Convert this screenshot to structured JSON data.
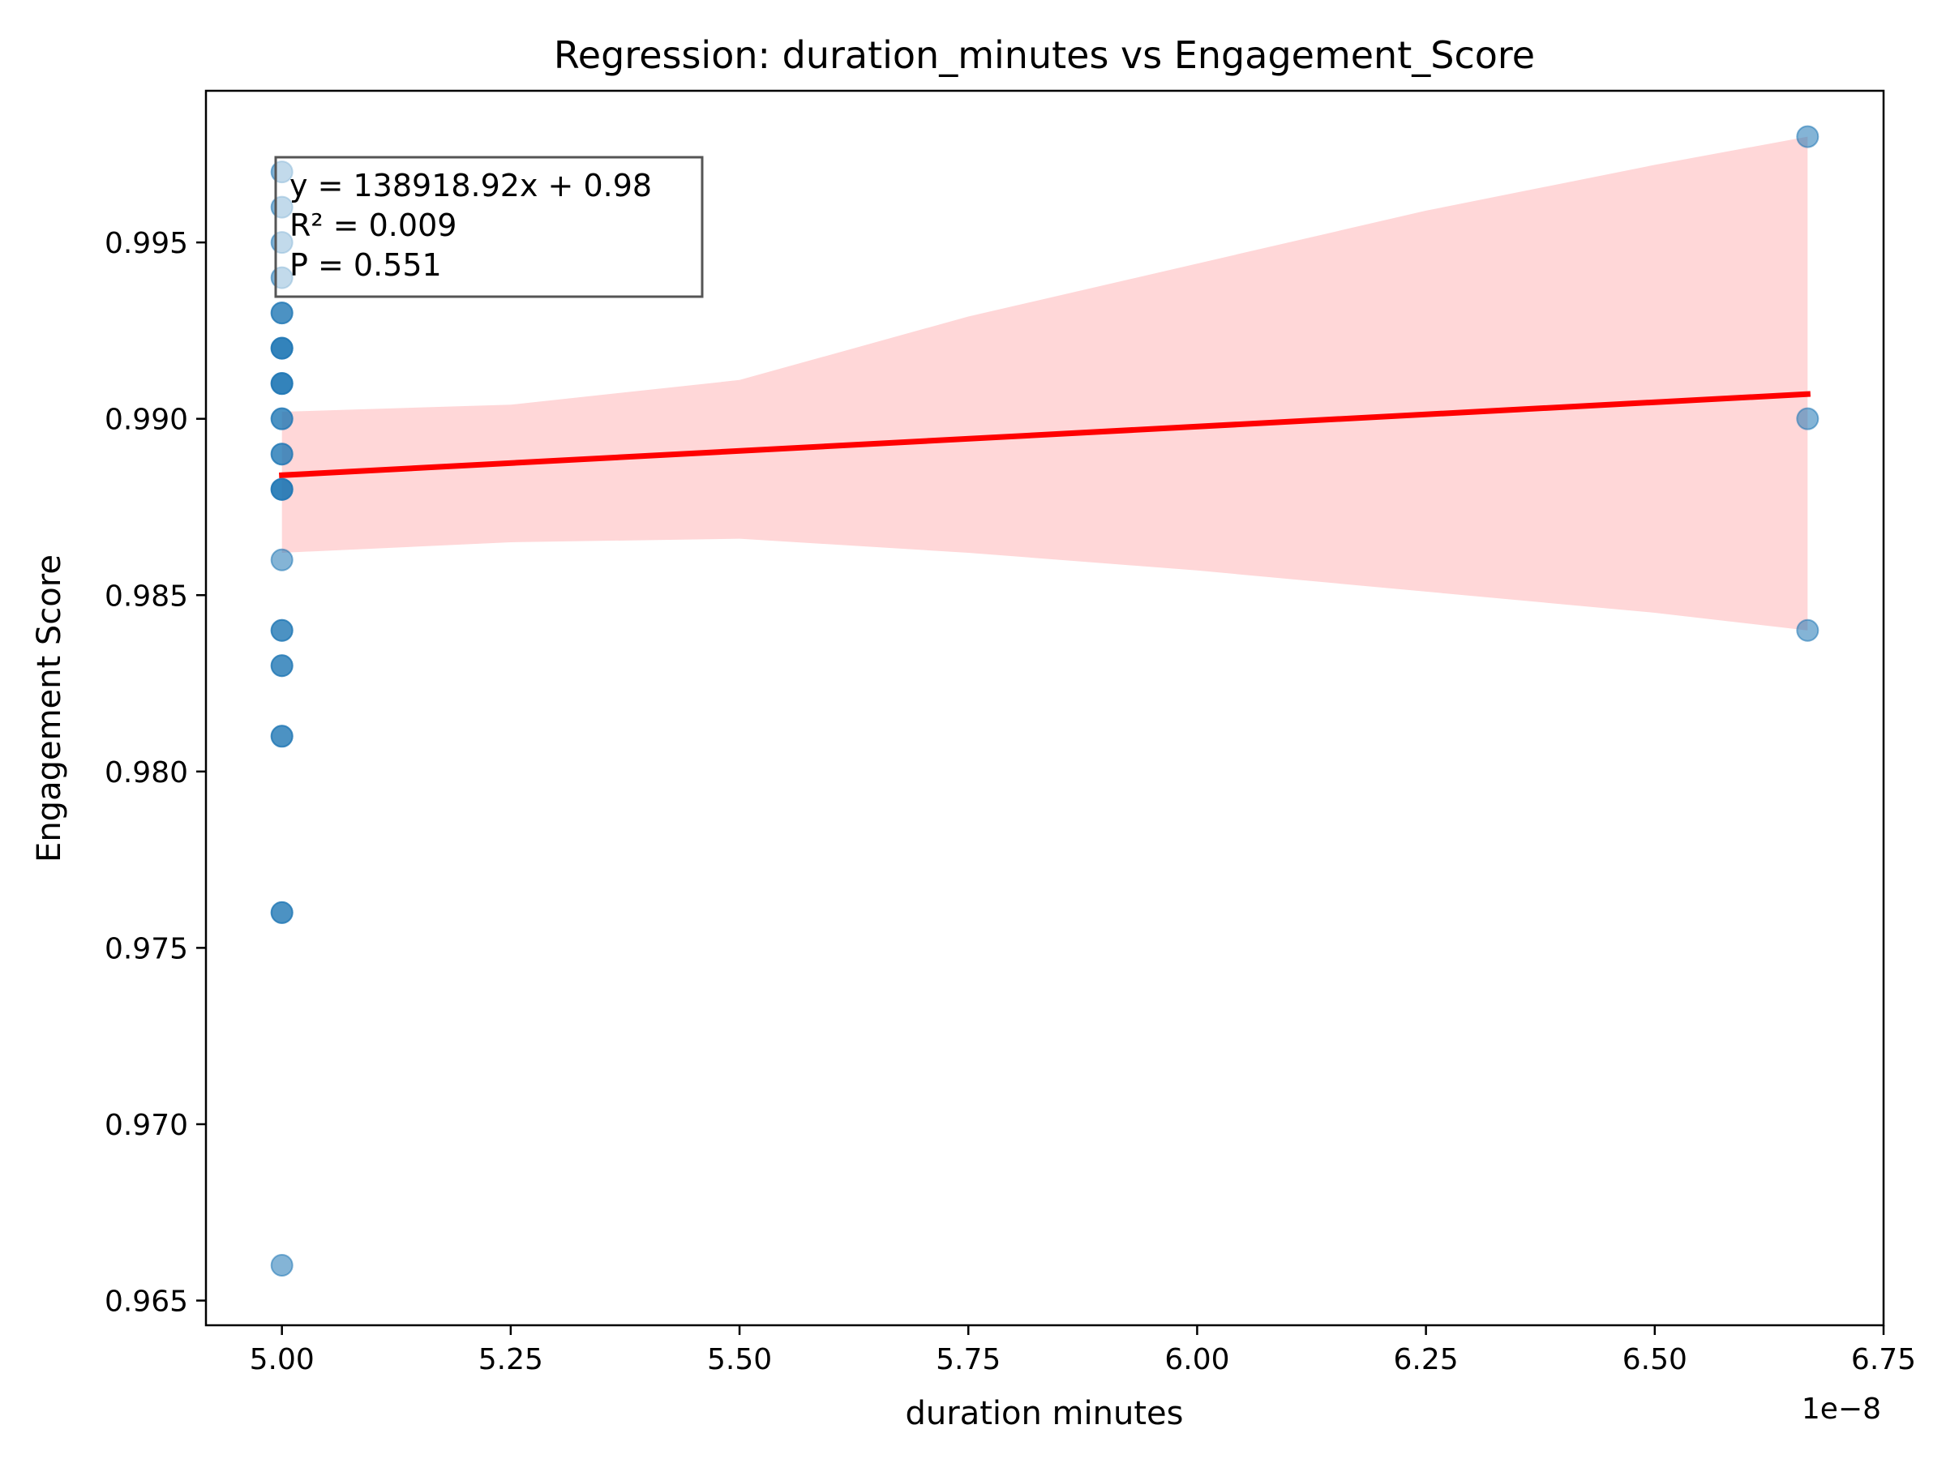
{
  "chart_data": {
    "type": "scatter",
    "title": "Regression: duration_minutes vs Engagement_Score",
    "xlabel": "duration minutes",
    "ylabel": "Engagement Score",
    "x_offset_label": "1e−8",
    "xlim": [
      4.917,
      6.75
    ],
    "ylim": [
      0.9643,
      0.9993
    ],
    "xticks": [
      5.0,
      5.25,
      5.5,
      5.75,
      6.0,
      6.25,
      6.5,
      6.75
    ],
    "xtick_labels": [
      "5.00",
      "5.25",
      "5.50",
      "5.75",
      "6.00",
      "6.25",
      "6.50",
      "6.75"
    ],
    "yticks": [
      0.965,
      0.97,
      0.975,
      0.98,
      0.985,
      0.99,
      0.995
    ],
    "ytick_labels": [
      "0.965",
      "0.970",
      "0.975",
      "0.980",
      "0.985",
      "0.990",
      "0.995"
    ],
    "grid": false,
    "points": [
      {
        "x": 5.0,
        "y": 0.997
      },
      {
        "x": 5.0,
        "y": 0.996
      },
      {
        "x": 5.0,
        "y": 0.995
      },
      {
        "x": 5.0,
        "y": 0.994
      },
      {
        "x": 5.0,
        "y": 0.993
      },
      {
        "x": 5.0,
        "y": 0.993
      },
      {
        "x": 5.0,
        "y": 0.992
      },
      {
        "x": 5.0,
        "y": 0.992
      },
      {
        "x": 5.0,
        "y": 0.992
      },
      {
        "x": 5.0,
        "y": 0.991
      },
      {
        "x": 5.0,
        "y": 0.991
      },
      {
        "x": 5.0,
        "y": 0.991
      },
      {
        "x": 5.0,
        "y": 0.99
      },
      {
        "x": 5.0,
        "y": 0.99
      },
      {
        "x": 5.0,
        "y": 0.989
      },
      {
        "x": 5.0,
        "y": 0.989
      },
      {
        "x": 5.0,
        "y": 0.988
      },
      {
        "x": 5.0,
        "y": 0.988
      },
      {
        "x": 5.0,
        "y": 0.988
      },
      {
        "x": 5.0,
        "y": 0.986
      },
      {
        "x": 5.0,
        "y": 0.984
      },
      {
        "x": 5.0,
        "y": 0.984
      },
      {
        "x": 5.0,
        "y": 0.983
      },
      {
        "x": 5.0,
        "y": 0.983
      },
      {
        "x": 5.0,
        "y": 0.981
      },
      {
        "x": 5.0,
        "y": 0.981
      },
      {
        "x": 5.0,
        "y": 0.976
      },
      {
        "x": 5.0,
        "y": 0.976
      },
      {
        "x": 5.0,
        "y": 0.966
      },
      {
        "x": 6.667,
        "y": 0.998
      },
      {
        "x": 6.667,
        "y": 0.99
      },
      {
        "x": 6.667,
        "y": 0.984
      }
    ],
    "regression_line": {
      "x": [
        5.0,
        6.667
      ],
      "y": [
        0.9884,
        0.9907
      ]
    },
    "confidence_band": {
      "x": [
        5.0,
        5.25,
        5.5,
        5.75,
        6.0,
        6.25,
        6.5,
        6.667
      ],
      "upper": [
        0.9902,
        0.9904,
        0.9911,
        0.9929,
        0.9944,
        0.9959,
        0.9972,
        0.998
      ],
      "lower": [
        0.9862,
        0.9865,
        0.9866,
        0.9862,
        0.9857,
        0.9851,
        0.9845,
        0.984
      ]
    },
    "annotation_lines": [
      "y = 138918.92x + 0.98",
      "R² = 0.009",
      "P = 0.551"
    ],
    "colors": {
      "points": "#1f77b4",
      "line": "#ff0000",
      "band": "#ffd7d8"
    }
  }
}
